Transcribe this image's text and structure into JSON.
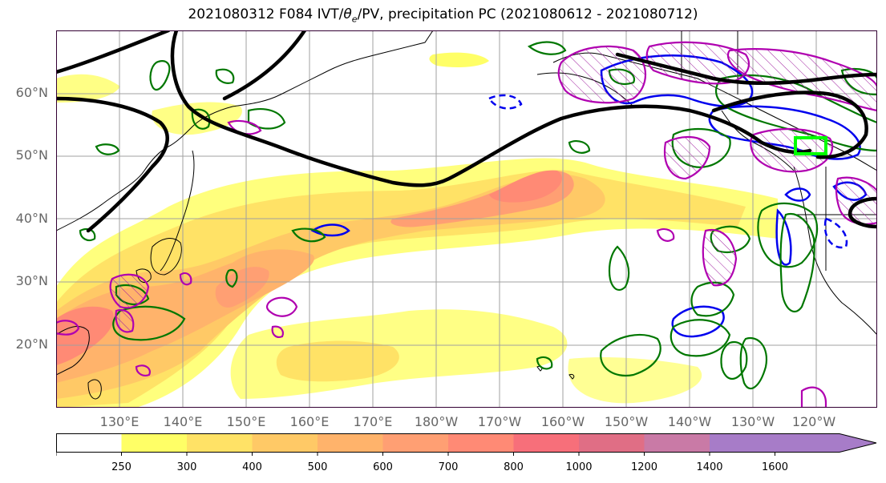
{
  "title": {
    "prefix": "2021080312 F084 IVT/",
    "theta": "θ",
    "sub": "e",
    "suffix": "/PV, precipitation PC (2021080612 - 2021080712)"
  },
  "map": {
    "lat_labels": [
      "60°N",
      "50°N",
      "40°N",
      "30°N",
      "20°N"
    ],
    "lon_labels": [
      "130°E",
      "140°E",
      "150°E",
      "160°E",
      "170°E",
      "180°W",
      "170°W",
      "160°W",
      "150°W",
      "140°W",
      "130°W",
      "120°W"
    ]
  },
  "colorbar": {
    "levels": [
      "250",
      "300",
      "400",
      "500",
      "600",
      "700",
      "800",
      "1000",
      "1200",
      "1400",
      "1600"
    ],
    "colors": [
      "#ffffff",
      "#ffff66",
      "#ffe266",
      "#ffc966",
      "#ffb36b",
      "#ff9f73",
      "#ff8a75",
      "#f76f7a",
      "#e06e85",
      "#c97aa6",
      "#a77cc8"
    ]
  }
}
